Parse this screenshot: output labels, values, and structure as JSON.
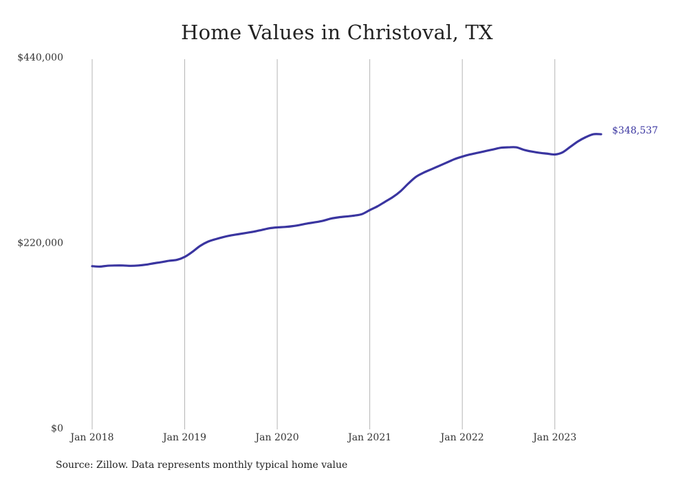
{
  "chart_data": {
    "type": "line",
    "title": "Home Values in Christoval, TX",
    "xlabel": "",
    "ylabel": "",
    "source": "Source: Zillow. Data represents monthly typical home value",
    "ylim": [
      0,
      440000
    ],
    "xlim": [
      "2018-01",
      "2023-07"
    ],
    "y_ticks": [
      {
        "value": 0,
        "label": "$0"
      },
      {
        "value": 220000,
        "label": "$220,000"
      },
      {
        "value": 440000,
        "label": "$440,000"
      }
    ],
    "x_ticks": [
      {
        "value": "2018-01",
        "label": "Jan 2018"
      },
      {
        "value": "2019-01",
        "label": "Jan 2019"
      },
      {
        "value": "2020-01",
        "label": "Jan 2020"
      },
      {
        "value": "2021-01",
        "label": "Jan 2021"
      },
      {
        "value": "2022-01",
        "label": "Jan 2022"
      },
      {
        "value": "2023-01",
        "label": "Jan 2023"
      }
    ],
    "grid": {
      "vertical": true,
      "horizontal": false
    },
    "end_label": "$348,537",
    "series_color": "#3a35a0",
    "series": [
      {
        "x": [
          "2018-01",
          "2018-02",
          "2018-03",
          "2018-04",
          "2018-05",
          "2018-06",
          "2018-07",
          "2018-08",
          "2018-09",
          "2018-10",
          "2018-11",
          "2018-12",
          "2019-01",
          "2019-02",
          "2019-03",
          "2019-04",
          "2019-05",
          "2019-06",
          "2019-07",
          "2019-08",
          "2019-09",
          "2019-10",
          "2019-11",
          "2019-12",
          "2020-01",
          "2020-02",
          "2020-03",
          "2020-04",
          "2020-05",
          "2020-06",
          "2020-07",
          "2020-08",
          "2020-09",
          "2020-10",
          "2020-11",
          "2020-12",
          "2021-01",
          "2021-02",
          "2021-03",
          "2021-04",
          "2021-05",
          "2021-06",
          "2021-07",
          "2021-08",
          "2021-09",
          "2021-10",
          "2021-11",
          "2021-12",
          "2022-01",
          "2022-02",
          "2022-03",
          "2022-04",
          "2022-05",
          "2022-06",
          "2022-07",
          "2022-08",
          "2022-09",
          "2022-10",
          "2022-11",
          "2022-12",
          "2023-01",
          "2023-02",
          "2023-03",
          "2023-04",
          "2023-05",
          "2023-06",
          "2023-07"
        ],
        "values": [
          192000,
          191500,
          192500,
          192800,
          192800,
          192400,
          192800,
          193800,
          195400,
          196800,
          198400,
          199500,
          203000,
          209000,
          216000,
          221000,
          224000,
          226500,
          228500,
          230000,
          231500,
          233000,
          235000,
          237000,
          238000,
          238500,
          239500,
          241000,
          242800,
          244200,
          246000,
          248500,
          250000,
          251000,
          252000,
          253800,
          258500,
          263000,
          268500,
          274000,
          281000,
          290000,
          298000,
          303000,
          307000,
          311000,
          315000,
          319000,
          322000,
          324500,
          326500,
          328500,
          330500,
          332500,
          333000,
          333000,
          330000,
          328000,
          326500,
          325500,
          324500,
          327000,
          333500,
          340000,
          345000,
          348537,
          348537
        ]
      }
    ]
  }
}
